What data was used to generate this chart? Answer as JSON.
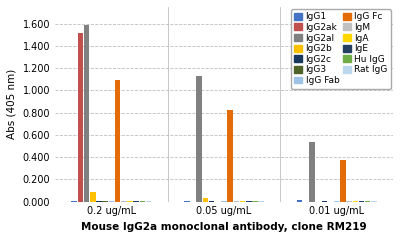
{
  "groups": [
    "0.2 ug/mL",
    "0.05 ug/mL",
    "0.01 ug/mL"
  ],
  "series": [
    {
      "label": "IgG1",
      "color": "#4472C4",
      "values": [
        0.01,
        0.008,
        0.012
      ]
    },
    {
      "label": "IgG2ak",
      "color": "#C0504D",
      "values": [
        1.52,
        0.0,
        0.0
      ]
    },
    {
      "label": "IgG2al",
      "color": "#808080",
      "values": [
        1.59,
        1.13,
        0.54
      ]
    },
    {
      "label": "IgG2b",
      "color": "#FFC000",
      "values": [
        0.09,
        0.03,
        0.0
      ]
    },
    {
      "label": "IgG2c",
      "color": "#17375E",
      "values": [
        0.01,
        0.008,
        0.01
      ]
    },
    {
      "label": "IgG3",
      "color": "#4F6228",
      "values": [
        0.008,
        0.0,
        0.0
      ]
    },
    {
      "label": "IgG Fab",
      "color": "#9DC3E6",
      "values": [
        0.008,
        0.008,
        0.008
      ]
    },
    {
      "label": "IgG Fc",
      "color": "#E36C09",
      "values": [
        1.095,
        0.82,
        0.37
      ]
    },
    {
      "label": "IgM",
      "color": "#C0C0C0",
      "values": [
        0.008,
        0.008,
        0.008
      ]
    },
    {
      "label": "IgA",
      "color": "#FFD700",
      "values": [
        0.008,
        0.008,
        0.008
      ]
    },
    {
      "label": "IgE",
      "color": "#243F60",
      "values": [
        0.008,
        0.008,
        0.008
      ]
    },
    {
      "label": "Hu IgG",
      "color": "#70AD47",
      "values": [
        0.008,
        0.008,
        0.008
      ]
    },
    {
      "label": "Rat IgG",
      "color": "#BDD7EE",
      "values": [
        0.008,
        0.008,
        0.008
      ]
    }
  ],
  "ylabel": "Abs (405 nm)",
  "xlabel": "Mouse IgG2a monoclonal antibody, clone RM219",
  "ylim": [
    0.0,
    1.75
  ],
  "yticks": [
    0.0,
    0.2,
    0.4,
    0.6,
    0.8,
    1.0,
    1.2,
    1.4,
    1.6
  ],
  "background_color": "#FFFFFF",
  "plot_bg_color": "#FFFFFF",
  "grid_color": "#BFBFBF",
  "axis_fontsize": 7.5,
  "tick_fontsize": 7,
  "legend_fontsize": 6.5
}
